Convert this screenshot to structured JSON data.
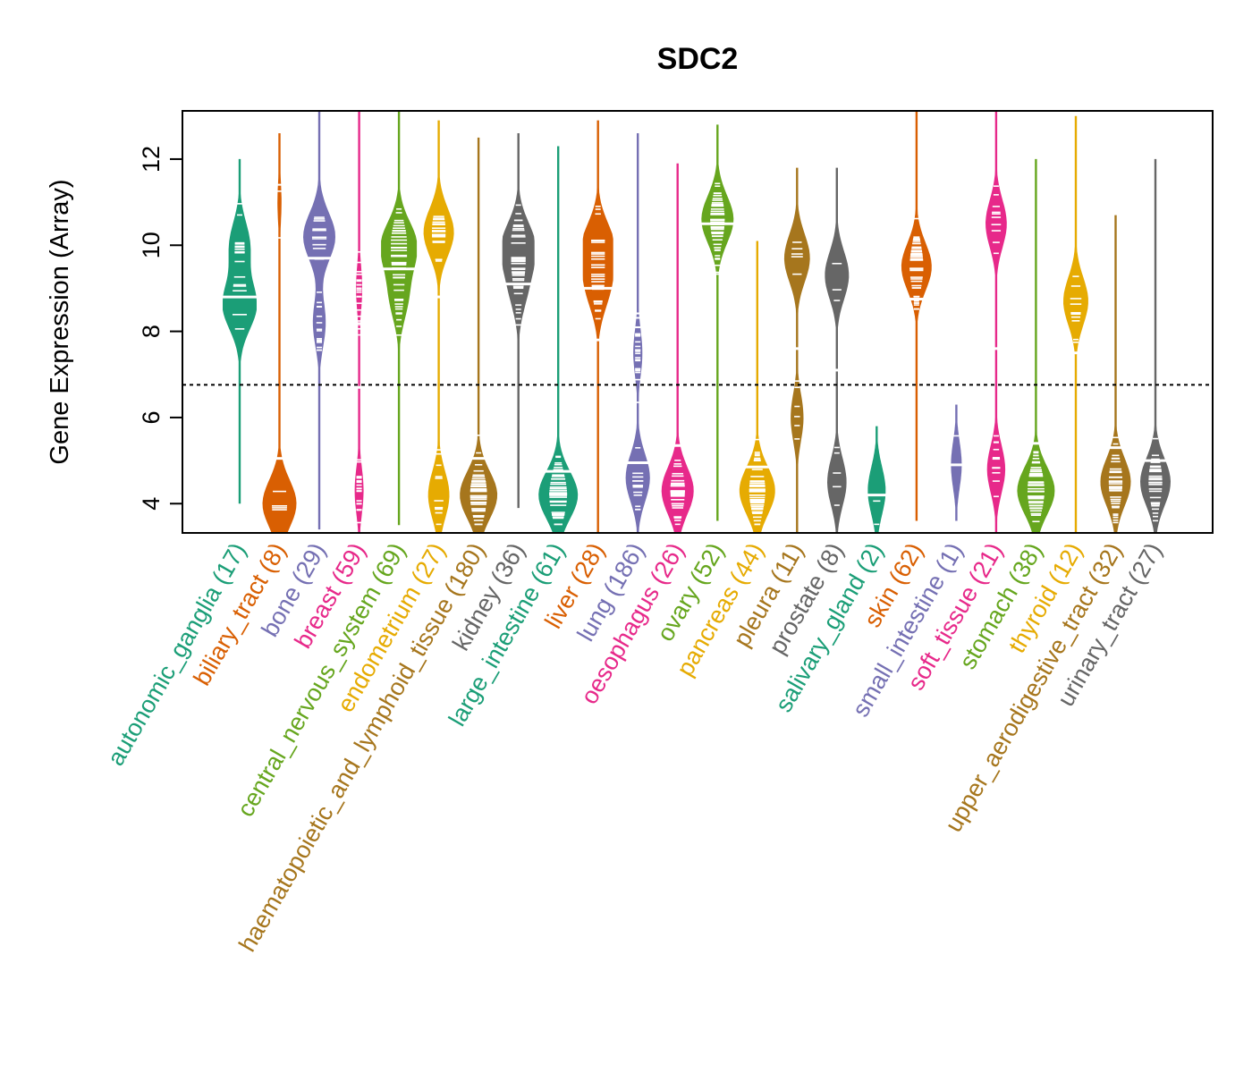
{
  "chart_data": {
    "type": "violin",
    "title": "SDC2",
    "xlabel": "",
    "ylabel": "Gene Expression (Array)",
    "ylim": [
      3.32,
      13.12
    ],
    "yticks": [
      4,
      6,
      8,
      10,
      12
    ],
    "reference_line": {
      "value": 6.76,
      "style": "dotted"
    },
    "grid": false,
    "legend": "none",
    "categories": [
      {
        "name": "autonomic_ganglia",
        "n": 17,
        "label": "autonomic_ganglia (17)",
        "color": "#1B9E77",
        "min": 4.0,
        "max": 12.0,
        "median": 8.8,
        "peaks": [
          [
            8.6,
            1.0
          ],
          [
            10.0,
            0.6
          ]
        ],
        "width": 0.95
      },
      {
        "name": "biliary_tract",
        "n": 8,
        "label": "biliary_tract (8)",
        "color": "#D95F02",
        "min": 3.3,
        "max": 12.6,
        "median": 5.05,
        "peaks": [
          [
            4.0,
            1.0
          ],
          [
            11.0,
            0.12
          ]
        ],
        "width": 0.95
      },
      {
        "name": "bone",
        "n": 29,
        "label": "bone (29)",
        "color": "#7570B3",
        "min": 3.4,
        "max": 13.1,
        "median": 9.7,
        "peaks": [
          [
            10.2,
            1.0
          ],
          [
            8.2,
            0.4
          ]
        ],
        "width": 0.9
      },
      {
        "name": "breast",
        "n": 59,
        "label": "breast (59)",
        "color": "#E7298A",
        "min": 3.3,
        "max": 13.1,
        "median": 6.7,
        "peaks": [
          [
            4.3,
            0.5
          ],
          [
            9.0,
            0.35
          ]
        ],
        "width": 0.5
      },
      {
        "name": "central_nervous_system",
        "n": 69,
        "label": "central_nervous_system (69)",
        "color": "#66A61E",
        "min": 3.5,
        "max": 13.1,
        "median": 9.45,
        "peaks": [
          [
            10.0,
            1.0
          ],
          [
            8.8,
            0.5
          ]
        ],
        "width": 1.0
      },
      {
        "name": "endometrium",
        "n": 27,
        "label": "endometrium (27)",
        "color": "#E6AB02",
        "min": 3.3,
        "max": 12.9,
        "median": 8.8,
        "peaks": [
          [
            10.3,
            1.0
          ],
          [
            4.2,
            0.7
          ]
        ],
        "width": 0.85
      },
      {
        "name": "haematopoietic_and_lymphoid_tissue",
        "n": 180,
        "label": "haematopoietic_and_lymphoid_tissue (180)",
        "color": "#A6761D",
        "min": 3.3,
        "max": 12.5,
        "median": 5.05,
        "peaks": [
          [
            4.2,
            1.0
          ]
        ],
        "width": 1.05
      },
      {
        "name": "kidney",
        "n": 36,
        "label": "kidney (36)",
        "color": "#666666",
        "min": 3.9,
        "max": 12.6,
        "median": 9.1,
        "peaks": [
          [
            10.0,
            1.0
          ],
          [
            9.0,
            0.5
          ]
        ],
        "width": 0.9
      },
      {
        "name": "large_intestine",
        "n": 61,
        "label": "large_intestine (61)",
        "color": "#1B9E77",
        "min": 3.3,
        "max": 12.3,
        "median": 4.75,
        "peaks": [
          [
            4.2,
            1.0
          ]
        ],
        "width": 1.1
      },
      {
        "name": "liver",
        "n": 28,
        "label": "liver (28)",
        "color": "#D95F02",
        "min": 3.3,
        "max": 12.9,
        "median": 9.0,
        "peaks": [
          [
            10.0,
            1.0
          ],
          [
            9.0,
            0.7
          ]
        ],
        "width": 0.85
      },
      {
        "name": "lung",
        "n": 186,
        "label": "lung (186)",
        "color": "#7570B3",
        "min": 3.3,
        "max": 12.6,
        "median": 4.95,
        "peaks": [
          [
            4.6,
            0.8
          ],
          [
            7.5,
            0.3
          ]
        ],
        "width": 0.85
      },
      {
        "name": "oesophagus",
        "n": 26,
        "label": "oesophagus (26)",
        "color": "#E7298A",
        "min": 3.3,
        "max": 11.9,
        "median": 5.35,
        "peaks": [
          [
            4.3,
            1.0
          ]
        ],
        "width": 0.9
      },
      {
        "name": "ovary",
        "n": 52,
        "label": "ovary (52)",
        "color": "#66A61E",
        "min": 3.6,
        "max": 12.8,
        "median": 10.5,
        "peaks": [
          [
            10.6,
            1.0
          ]
        ],
        "width": 0.9
      },
      {
        "name": "pancreas",
        "n": 44,
        "label": "pancreas (44)",
        "color": "#E6AB02",
        "min": 3.3,
        "max": 10.1,
        "median": 4.85,
        "peaks": [
          [
            4.3,
            1.0
          ]
        ],
        "width": 1.0
      },
      {
        "name": "pleura",
        "n": 11,
        "label": "pleura (11)",
        "color": "#A6761D",
        "min": 3.3,
        "max": 11.8,
        "median": 7.6,
        "peaks": [
          [
            9.7,
            0.8
          ],
          [
            6.0,
            0.4
          ]
        ],
        "width": 0.9
      },
      {
        "name": "prostate",
        "n": 8,
        "label": "prostate (8)",
        "color": "#666666",
        "min": 3.3,
        "max": 11.8,
        "median": 7.1,
        "peaks": [
          [
            9.3,
            0.75
          ],
          [
            4.5,
            0.6
          ]
        ],
        "width": 0.9
      },
      {
        "name": "salivary_gland",
        "n": 2,
        "label": "salivary_gland (2)",
        "color": "#1B9E77",
        "min": 3.3,
        "max": 5.8,
        "median": 4.2,
        "peaks": [
          [
            4.3,
            1.0
          ]
        ],
        "width": 0.5
      },
      {
        "name": "skin",
        "n": 62,
        "label": "skin (62)",
        "color": "#D95F02",
        "min": 3.6,
        "max": 13.1,
        "median": 8.75,
        "peaks": [
          [
            9.5,
            1.0
          ]
        ],
        "width": 0.85
      },
      {
        "name": "small_intestine",
        "n": 1,
        "label": "small_intestine (1)",
        "color": "#7570B3",
        "min": 3.6,
        "max": 6.3,
        "median": 4.9,
        "peaks": [
          [
            4.9,
            1.0
          ]
        ],
        "width": 0.3
      },
      {
        "name": "soft_tissue",
        "n": 21,
        "label": "soft_tissue (21)",
        "color": "#E7298A",
        "min": 3.3,
        "max": 13.1,
        "median": 7.6,
        "peaks": [
          [
            10.5,
            0.7
          ],
          [
            4.8,
            0.6
          ]
        ],
        "width": 0.85
      },
      {
        "name": "stomach",
        "n": 38,
        "label": "stomach (38)",
        "color": "#66A61E",
        "min": 3.3,
        "max": 12.0,
        "median": 5.4,
        "peaks": [
          [
            4.3,
            1.0
          ]
        ],
        "width": 1.05
      },
      {
        "name": "thyroid",
        "n": 12,
        "label": "thyroid (12)",
        "color": "#E6AB02",
        "min": 3.3,
        "max": 13.0,
        "median": 7.5,
        "peaks": [
          [
            8.7,
            1.0
          ]
        ],
        "width": 0.7
      },
      {
        "name": "upper_aerodigestive_tract",
        "n": 32,
        "label": "upper_aerodigestive_tract (32)",
        "color": "#A6761D",
        "min": 3.3,
        "max": 10.7,
        "median": 5.3,
        "peaks": [
          [
            4.5,
            1.0
          ]
        ],
        "width": 0.85
      },
      {
        "name": "urinary_tract",
        "n": 27,
        "label": "urinary_tract (27)",
        "color": "#666666",
        "min": 3.3,
        "max": 12.0,
        "median": 5.0,
        "peaks": [
          [
            4.5,
            1.0
          ]
        ],
        "width": 0.85
      }
    ]
  }
}
